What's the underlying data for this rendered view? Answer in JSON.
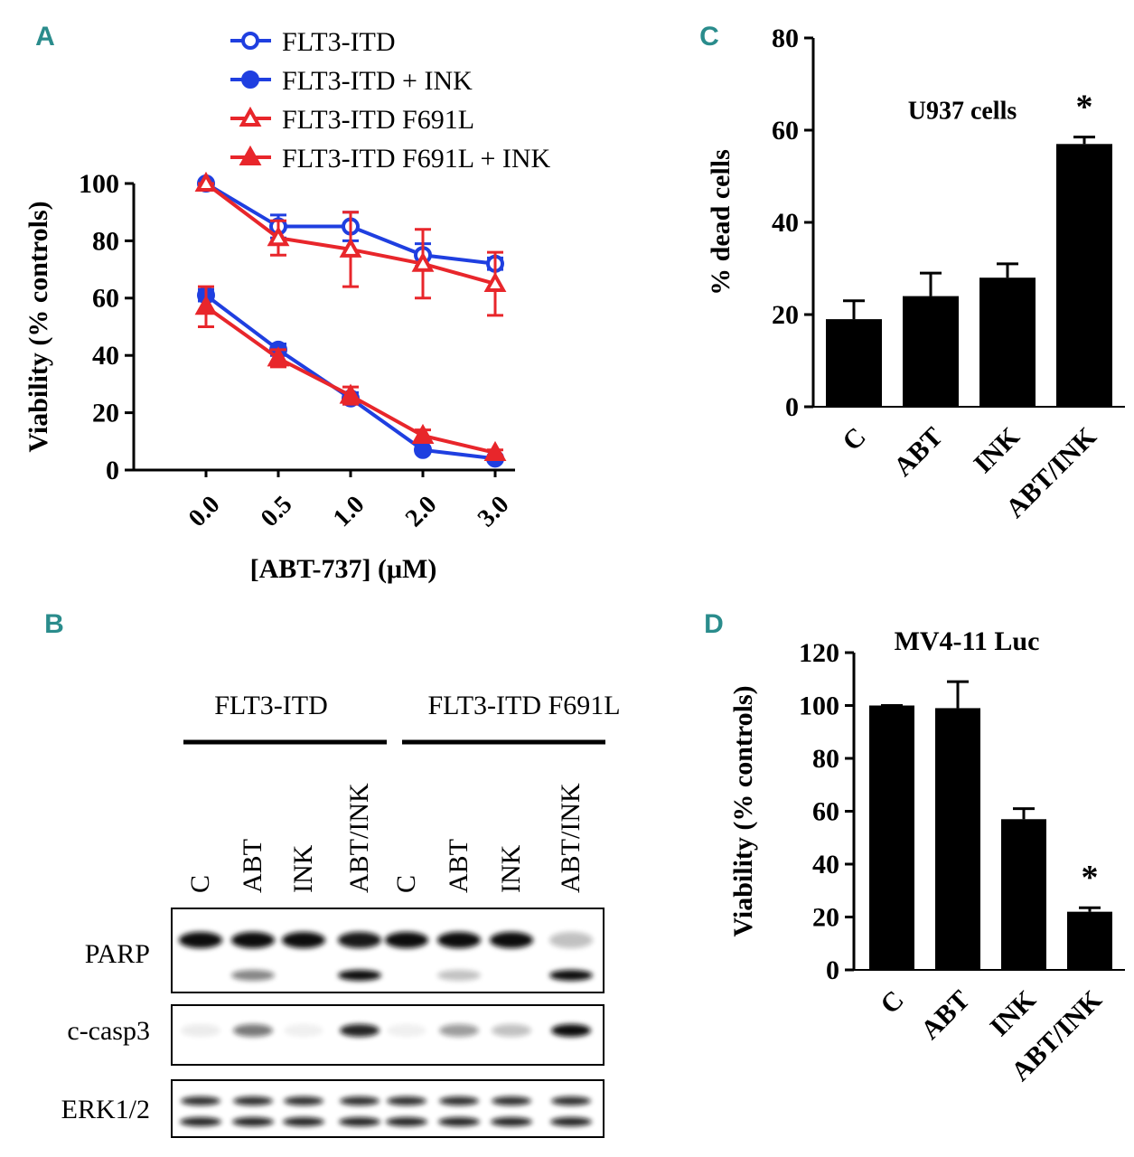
{
  "chart_data": [
    {
      "type": "line",
      "panel": "A",
      "x_label": "[ABT-737] (μM)",
      "y_label": "Viability (% controls)",
      "categories": [
        "0.0",
        "0.5",
        "1.0",
        "2.0",
        "3.0"
      ],
      "ylim": [
        0,
        100
      ],
      "yticks": [
        0,
        20,
        40,
        60,
        80,
        100
      ],
      "series": [
        {
          "name": "FLT3-ITD",
          "color": "#1f3fe0",
          "marker": "circle",
          "filled": false,
          "values": [
            100,
            85,
            85,
            75,
            72
          ],
          "errors": [
            0,
            4,
            5,
            4,
            2
          ]
        },
        {
          "name": "FLT3-ITD + INK",
          "color": "#1f3fe0",
          "marker": "circle",
          "filled": true,
          "values": [
            61,
            42,
            25,
            7,
            4
          ],
          "errors": [
            2,
            2,
            2,
            1,
            1
          ]
        },
        {
          "name": "FLT3-ITD F691L",
          "color": "#e8262b",
          "marker": "triangle",
          "filled": false,
          "values": [
            100,
            81,
            77,
            72,
            65
          ],
          "errors": [
            0,
            6,
            13,
            12,
            11
          ]
        },
        {
          "name": "FLT3-ITD F691L + INK",
          "color": "#e8262b",
          "marker": "triangle",
          "filled": true,
          "values": [
            57,
            39,
            26,
            12,
            6
          ],
          "errors": [
            7,
            3,
            3,
            2,
            1
          ]
        }
      ]
    },
    {
      "type": "bar",
      "panel": "C",
      "y_label": "% dead cells",
      "annotation": "U937 cells",
      "significance": "*",
      "categories": [
        "C",
        "ABT",
        "INK",
        "ABT/INK"
      ],
      "values": [
        19,
        24,
        28,
        57
      ],
      "errors": [
        4,
        5,
        3,
        1.5
      ],
      "color": "#000000",
      "ylim": [
        0,
        80
      ],
      "yticks": [
        0,
        20,
        40,
        60,
        80
      ]
    },
    {
      "type": "bar",
      "panel": "D",
      "title": "MV4-11 Luc",
      "y_label": "Viability (% controls)",
      "significance": "*",
      "categories": [
        "C",
        "ABT",
        "INK",
        "ABT/INK"
      ],
      "values": [
        100,
        99,
        57,
        22
      ],
      "errors": [
        0,
        10,
        4,
        1.5
      ],
      "color": "#000000",
      "ylim": [
        0,
        120
      ],
      "yticks": [
        0,
        20,
        40,
        60,
        80,
        100,
        120
      ]
    }
  ],
  "blot": {
    "panel": "B",
    "groups": [
      "FLT3-ITD",
      "FLT3-ITD F691L"
    ],
    "lanes": [
      "C",
      "ABT",
      "INK",
      "ABT/INK",
      "C",
      "ABT",
      "INK",
      "ABT/INK"
    ],
    "rows": [
      "PARP",
      "c-casp3",
      "ERK1/2"
    ]
  }
}
